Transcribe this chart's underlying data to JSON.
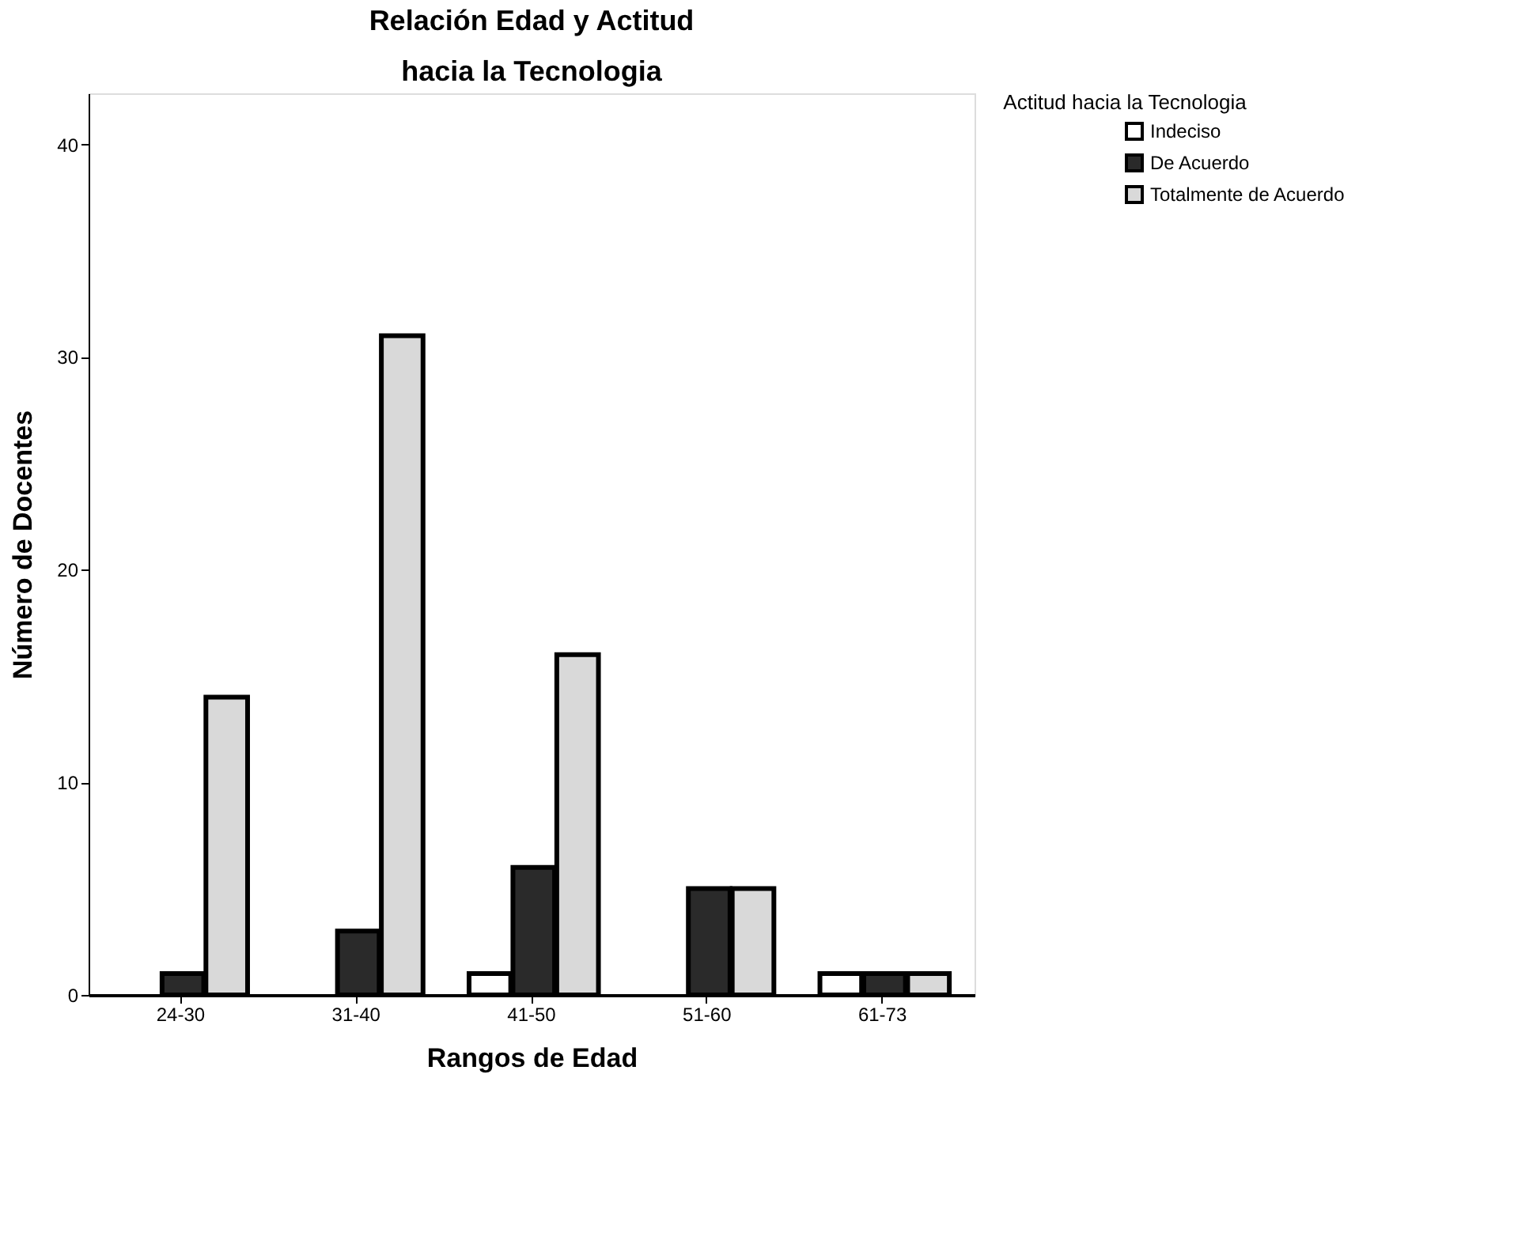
{
  "chart_data": {
    "type": "bar",
    "title": "Relación Edad y Actitud",
    "subtitle": "hacia la Tecnologia",
    "xlabel": "Rangos de Edad",
    "ylabel": "Número de Docentes",
    "legend_title": "Actitud hacia la Tecnologia",
    "categories": [
      "24-30",
      "31-40",
      "41-50",
      "51-60",
      "61-73"
    ],
    "series": [
      {
        "name": "Indeciso",
        "color": "#ffffff",
        "values": [
          0,
          0,
          1,
          0,
          1
        ]
      },
      {
        "name": "De Acuerdo",
        "color": "#2a2a2a",
        "values": [
          1,
          3,
          6,
          5,
          1
        ]
      },
      {
        "name": "Totalmente de Acuerdo",
        "color": "#d9d9d9",
        "values": [
          14,
          31,
          16,
          5,
          1
        ]
      }
    ],
    "ylim": [
      0,
      42.4
    ],
    "yticks": [
      0,
      10,
      20,
      30,
      40
    ],
    "grid": false,
    "legend": "top right"
  }
}
